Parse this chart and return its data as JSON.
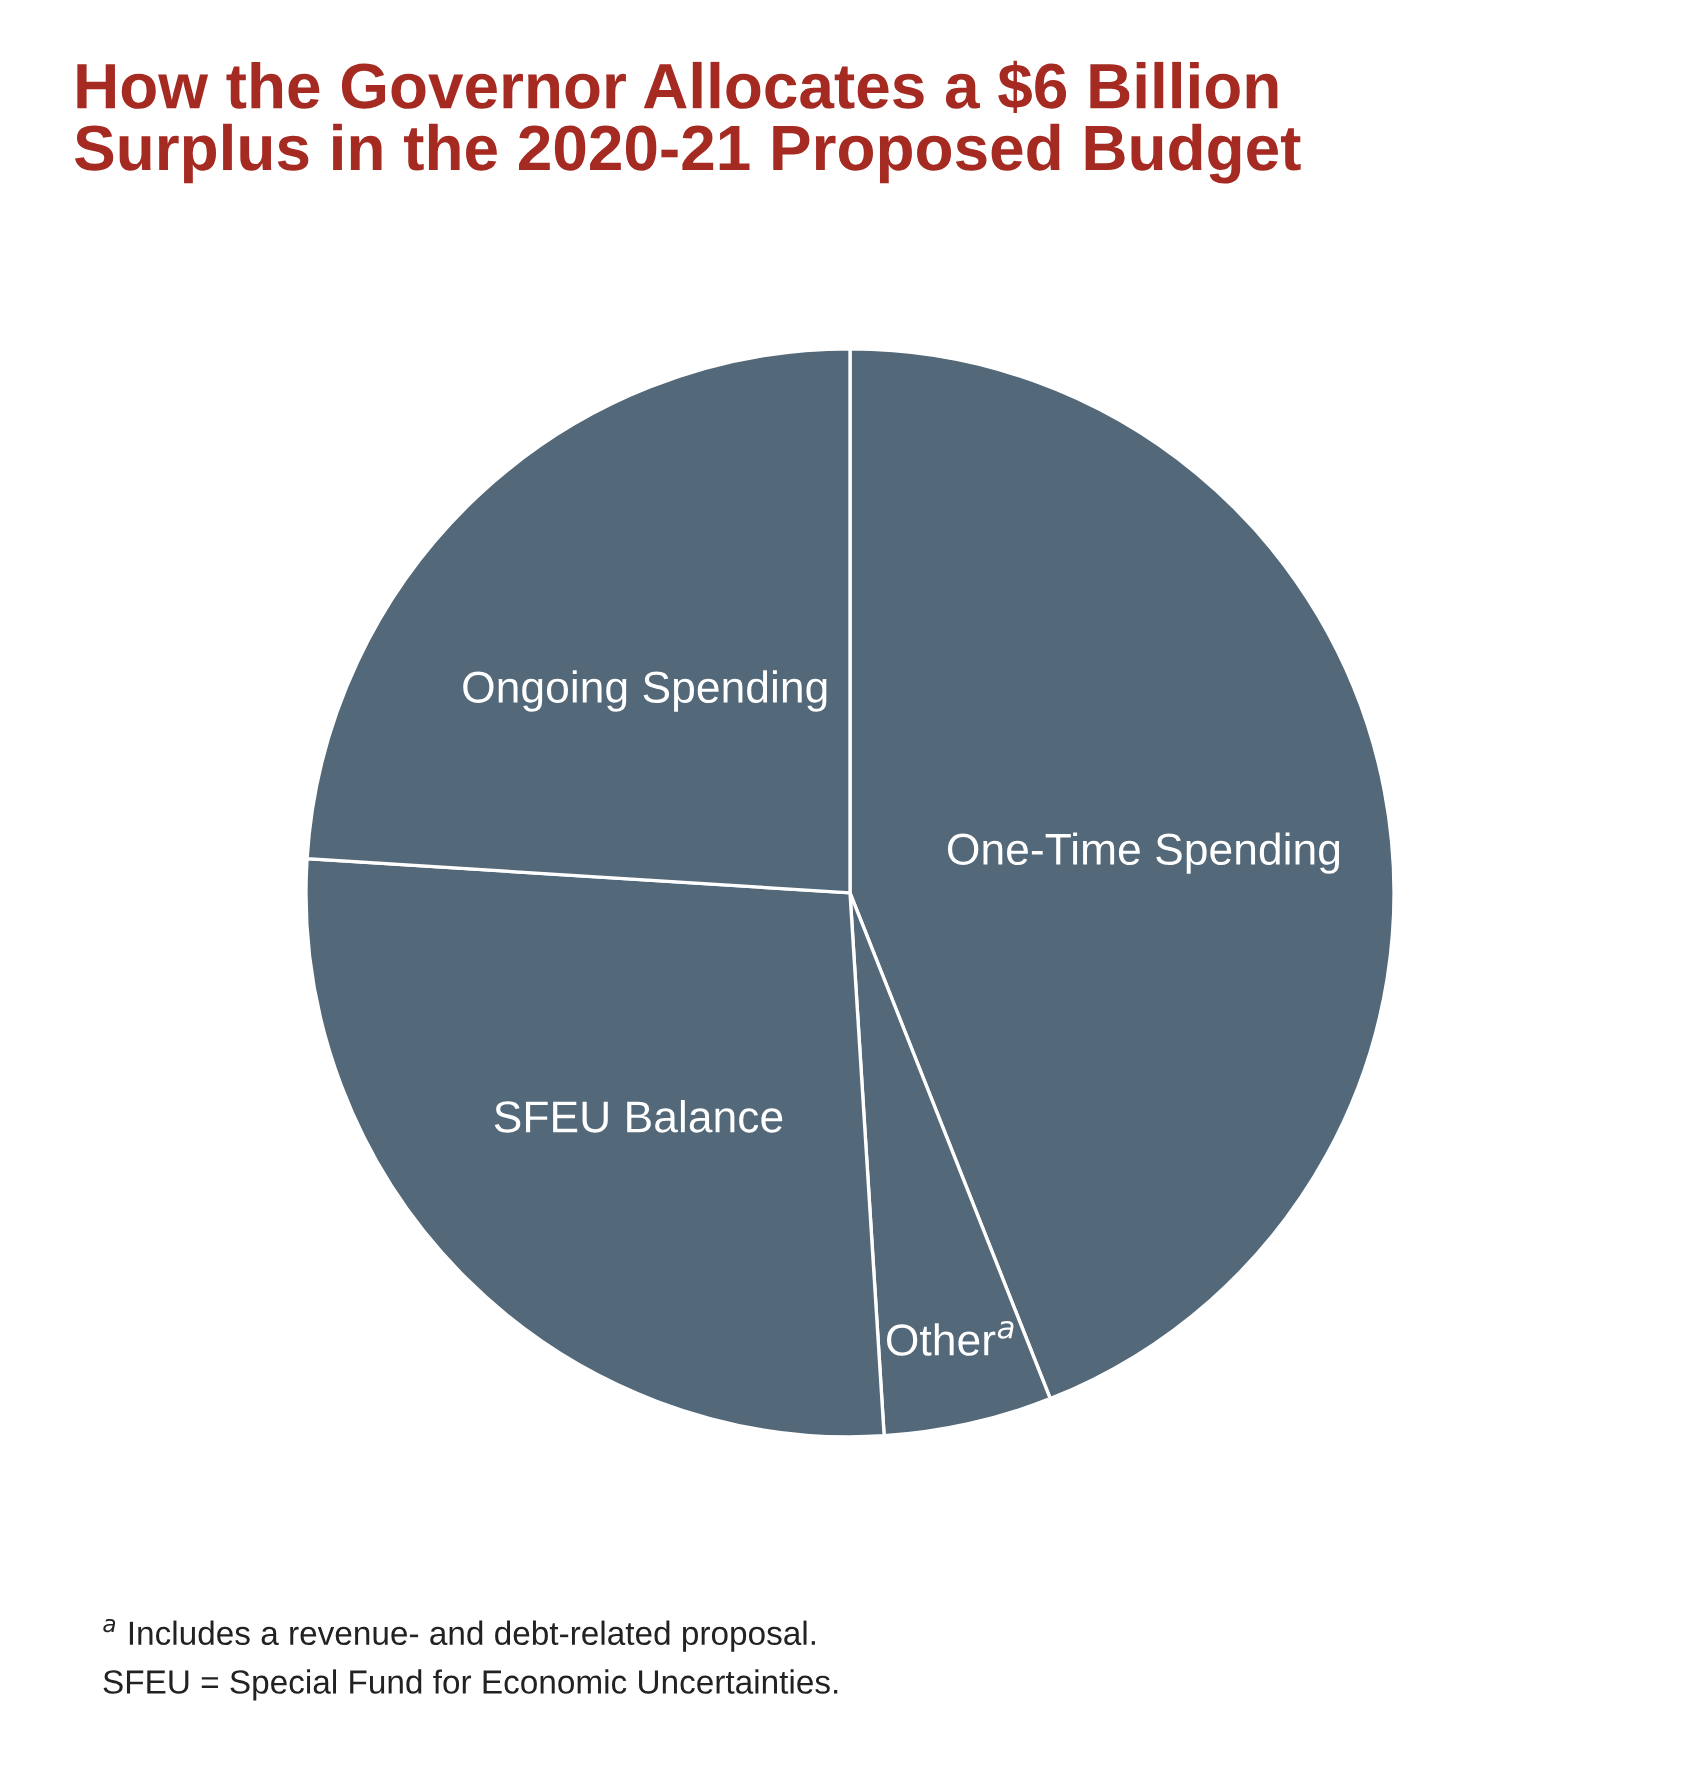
{
  "chart_data": {
    "type": "pie",
    "title": "How the Governor Allocates a $6 Billion\nSurplus in the 2020-21 Proposed Budget",
    "categories": [
      "One-Time Spending",
      "Other$^{a}$",
      "SFEU Balance",
      "Ongoing Spending"
    ],
    "values": [
      44,
      5,
      27,
      24
    ],
    "colors": [
      "#536878",
      "#536878",
      "#536878",
      "#536878"
    ],
    "annotations": [
      "$^{a}$ Includes a revenue- and debt-related proposal.",
      "SFEU = Special Fund for Economic Uncertainties."
    ]
  }
}
